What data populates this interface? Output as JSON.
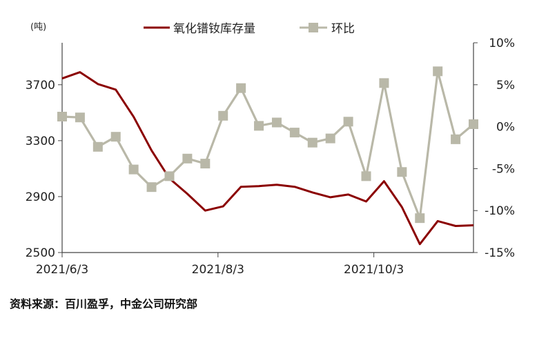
{
  "chart_data": {
    "type": "line",
    "left_unit": "(吨)",
    "x": [
      "2021/6/3",
      "2021/6/10",
      "2021/6/17",
      "2021/6/24",
      "2021/7/1",
      "2021/7/8",
      "2021/7/15",
      "2021/7/22",
      "2021/7/29",
      "2021/8/5",
      "2021/8/12",
      "2021/8/19",
      "2021/8/26",
      "2021/9/2",
      "2021/9/9",
      "2021/9/16",
      "2021/9/23",
      "2021/9/30",
      "2021/10/7",
      "2021/10/14",
      "2021/10/21",
      "2021/10/28",
      "2021/11/4",
      "2021/11/11"
    ],
    "x_tick_labels": [
      "2021/6/3",
      "2021/8/3",
      "2021/10/3"
    ],
    "x_tick_dates": [
      "2021/6/3",
      "2021/8/3",
      "2021/10/3"
    ],
    "left_axis": {
      "ylim": [
        2500,
        4000
      ],
      "ticks": [
        2500,
        2900,
        3300,
        3700
      ]
    },
    "right_axis": {
      "ylim": [
        -15,
        10
      ],
      "ticks": [
        -15,
        -10,
        -5,
        0,
        5,
        10
      ],
      "tick_labels": [
        "-15%",
        "-10%",
        "-5%",
        "0%",
        "5%",
        "10%"
      ]
    },
    "series": [
      {
        "name": "氧化镨钕库存量",
        "axis": "left",
        "color": "#8b0000",
        "values": [
          3745,
          3790,
          3705,
          3665,
          3470,
          3230,
          3030,
          2920,
          2800,
          2830,
          2970,
          2975,
          2985,
          2970,
          2930,
          2895,
          2915,
          2865,
          3010,
          2825,
          2560,
          2725,
          2690,
          2695
        ]
      },
      {
        "name": "环比",
        "axis": "right",
        "color": "#b9b8a8",
        "marker": "square",
        "values": [
          1.2,
          1.1,
          -2.4,
          -1.2,
          -5.1,
          -7.2,
          -5.9,
          -3.8,
          -4.4,
          1.3,
          4.6,
          0.1,
          0.5,
          -0.7,
          -1.9,
          -1.4,
          0.6,
          -5.9,
          5.2,
          -5.4,
          -10.9,
          6.6,
          -1.5,
          0.3
        ]
      }
    ]
  },
  "source_text": "资料来源：百川盈孚，中金公司研究部"
}
